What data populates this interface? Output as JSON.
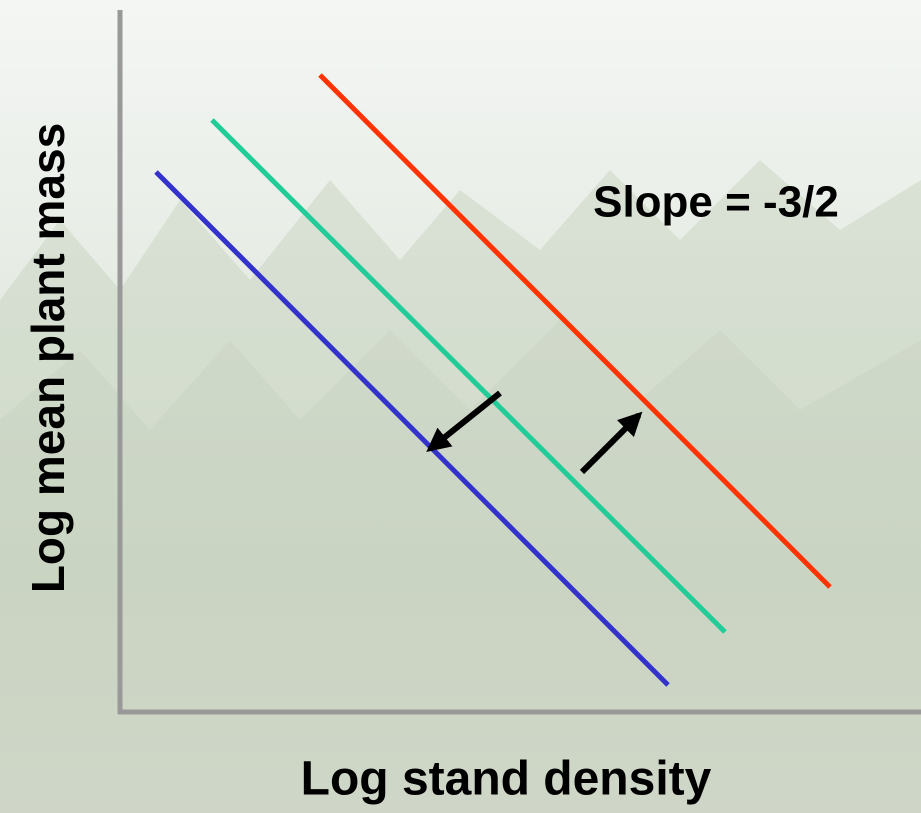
{
  "diagram": {
    "y_axis_label": "Log mean plant mass",
    "x_axis_label": "Log stand density",
    "annotation": "Slope = -3/2"
  }
}
